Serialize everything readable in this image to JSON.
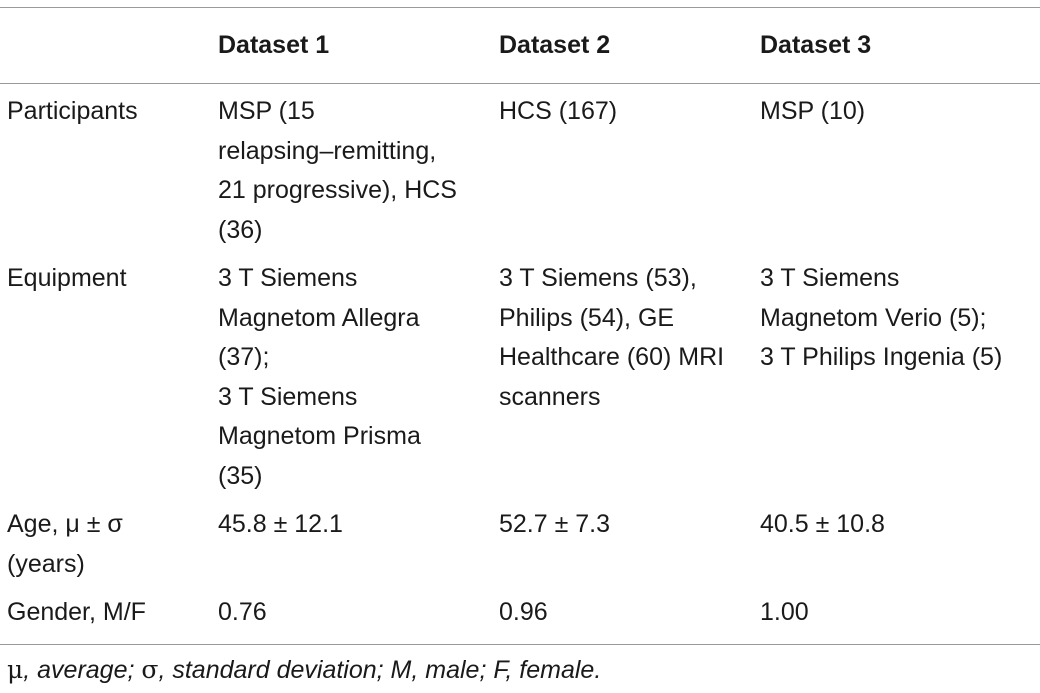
{
  "table": {
    "headers": [
      "",
      "Dataset 1",
      "Dataset 2",
      "Dataset 3"
    ],
    "rows": [
      {
        "label": "Participants",
        "cells": [
          [
            "MSP (15",
            "relapsing–remitting,",
            "21 progressive), HCS",
            "(36)"
          ],
          [
            "HCS (167)"
          ],
          [
            "MSP (10)"
          ]
        ]
      },
      {
        "label": "Equipment",
        "cells": [
          [
            "3 T Siemens",
            "Magnetom Allegra",
            "(37);",
            "3 T Siemens",
            "Magnetom Prisma",
            "(35)"
          ],
          [
            "3 T Siemens (53),",
            "Philips (54), GE",
            "Healthcare (60) MRI",
            "scanners"
          ],
          [
            "3 T Siemens",
            "Magnetom Verio (5);",
            "3 T Philips Ingenia (5)"
          ]
        ]
      },
      {
        "label_lines": [
          "Age, μ ± σ",
          "(years)"
        ],
        "cells": [
          [
            "45.8 ± 12.1"
          ],
          [
            "52.7 ± 7.3"
          ],
          [
            "40.5 ± 10.8"
          ]
        ]
      },
      {
        "label": "Gender, M/F",
        "cells": [
          [
            "0.76"
          ],
          [
            "0.96"
          ],
          [
            "1.00"
          ]
        ]
      }
    ]
  },
  "footnote": {
    "mu": "μ",
    "text1": ", average; ",
    "sigma": "σ",
    "text2": ", standard deviation; M, male; F, female."
  }
}
